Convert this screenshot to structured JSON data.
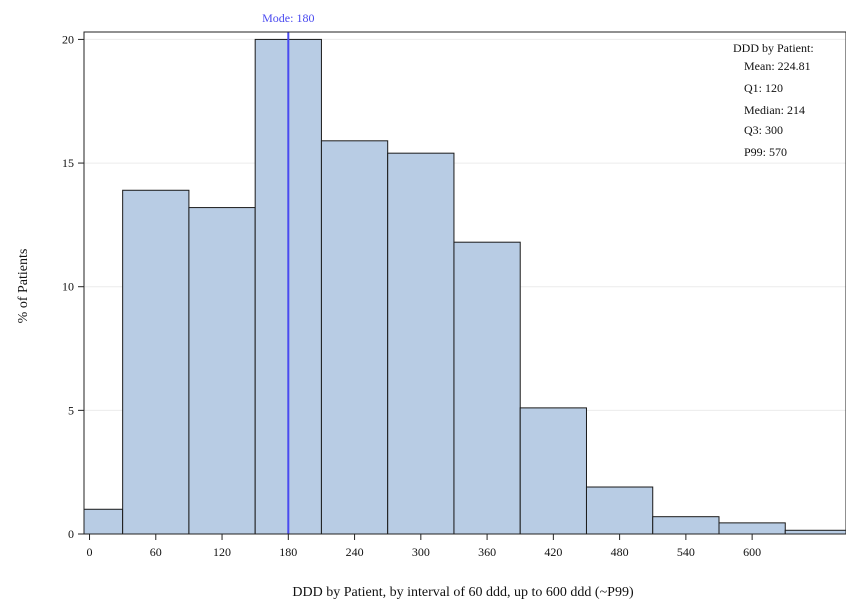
{
  "chart_data": {
    "type": "bar",
    "xlabel": "DDD by Patient, by interval of 60 ddd, up to 600 ddd (~P99)",
    "ylabel": "% of Patients",
    "bin_width": 60,
    "x_ticks": [
      0,
      60,
      120,
      180,
      240,
      300,
      360,
      420,
      480,
      540,
      600
    ],
    "xlim": [
      -5,
      685
    ],
    "ylim": [
      0,
      20.3
    ],
    "y_ticks": [
      0,
      5,
      10,
      15,
      20
    ],
    "bins": [
      {
        "start": -30,
        "end": 30,
        "value": 1.0
      },
      {
        "start": 30,
        "end": 90,
        "value": 13.9
      },
      {
        "start": 90,
        "end": 150,
        "value": 13.2
      },
      {
        "start": 150,
        "end": 210,
        "value": 20.0
      },
      {
        "start": 210,
        "end": 270,
        "value": 15.9
      },
      {
        "start": 270,
        "end": 330,
        "value": 15.4
      },
      {
        "start": 330,
        "end": 390,
        "value": 11.8
      },
      {
        "start": 390,
        "end": 450,
        "value": 5.1
      },
      {
        "start": 450,
        "end": 510,
        "value": 1.9
      },
      {
        "start": 510,
        "end": 570,
        "value": 0.7
      },
      {
        "start": 570,
        "end": 630,
        "value": 0.45
      },
      {
        "start": 630,
        "end": 690,
        "value": 0.15
      }
    ],
    "grid": "horizontal",
    "mode_line": {
      "x": 180,
      "label": "Mode: 180"
    },
    "stats_box": {
      "title": "DDD by Patient:",
      "lines": [
        "Mean: 224.81",
        "Q1: 120",
        "Median: 214",
        "Q3: 300",
        "P99: 570"
      ],
      "position": "top-right"
    },
    "colors": {
      "bar_fill": "#b8cce4",
      "bar_stroke": "#1a1a1a",
      "mode_line": "#4a4af0",
      "grid": "#ececec"
    }
  }
}
